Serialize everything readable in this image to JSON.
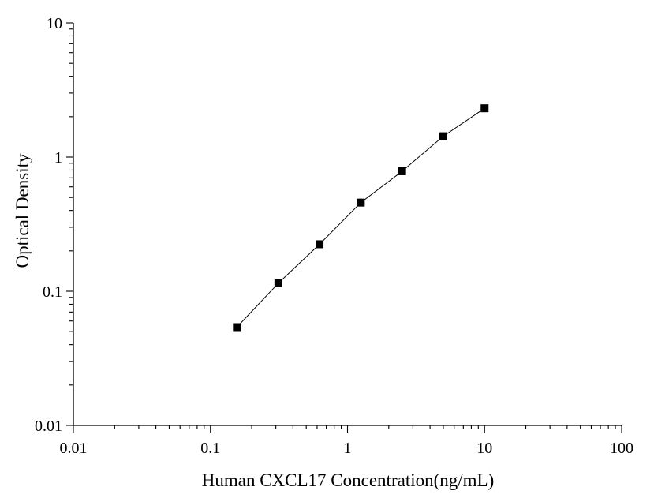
{
  "chart_data": {
    "type": "scatter",
    "xlabel": "Human CXCL17 Concentration(ng/mL)",
    "ylabel": "Optical Density",
    "xscale": "log",
    "yscale": "log",
    "xlim": [
      0.01,
      100
    ],
    "ylim": [
      0.01,
      10
    ],
    "x_ticks": [
      "0.01",
      "0.1",
      "1",
      "10",
      "100"
    ],
    "y_ticks": [
      "0.01",
      "0.1",
      "1",
      "10"
    ],
    "grid": false,
    "marker": "square",
    "line": true,
    "points": [
      {
        "x": 0.156,
        "y": 0.054
      },
      {
        "x": 0.313,
        "y": 0.115
      },
      {
        "x": 0.625,
        "y": 0.224
      },
      {
        "x": 1.25,
        "y": 0.458
      },
      {
        "x": 2.5,
        "y": 0.784
      },
      {
        "x": 5,
        "y": 1.43
      },
      {
        "x": 10,
        "y": 2.31
      }
    ],
    "colors": {
      "marker": "#000000",
      "line": "#000000",
      "axis": "#000000"
    }
  }
}
